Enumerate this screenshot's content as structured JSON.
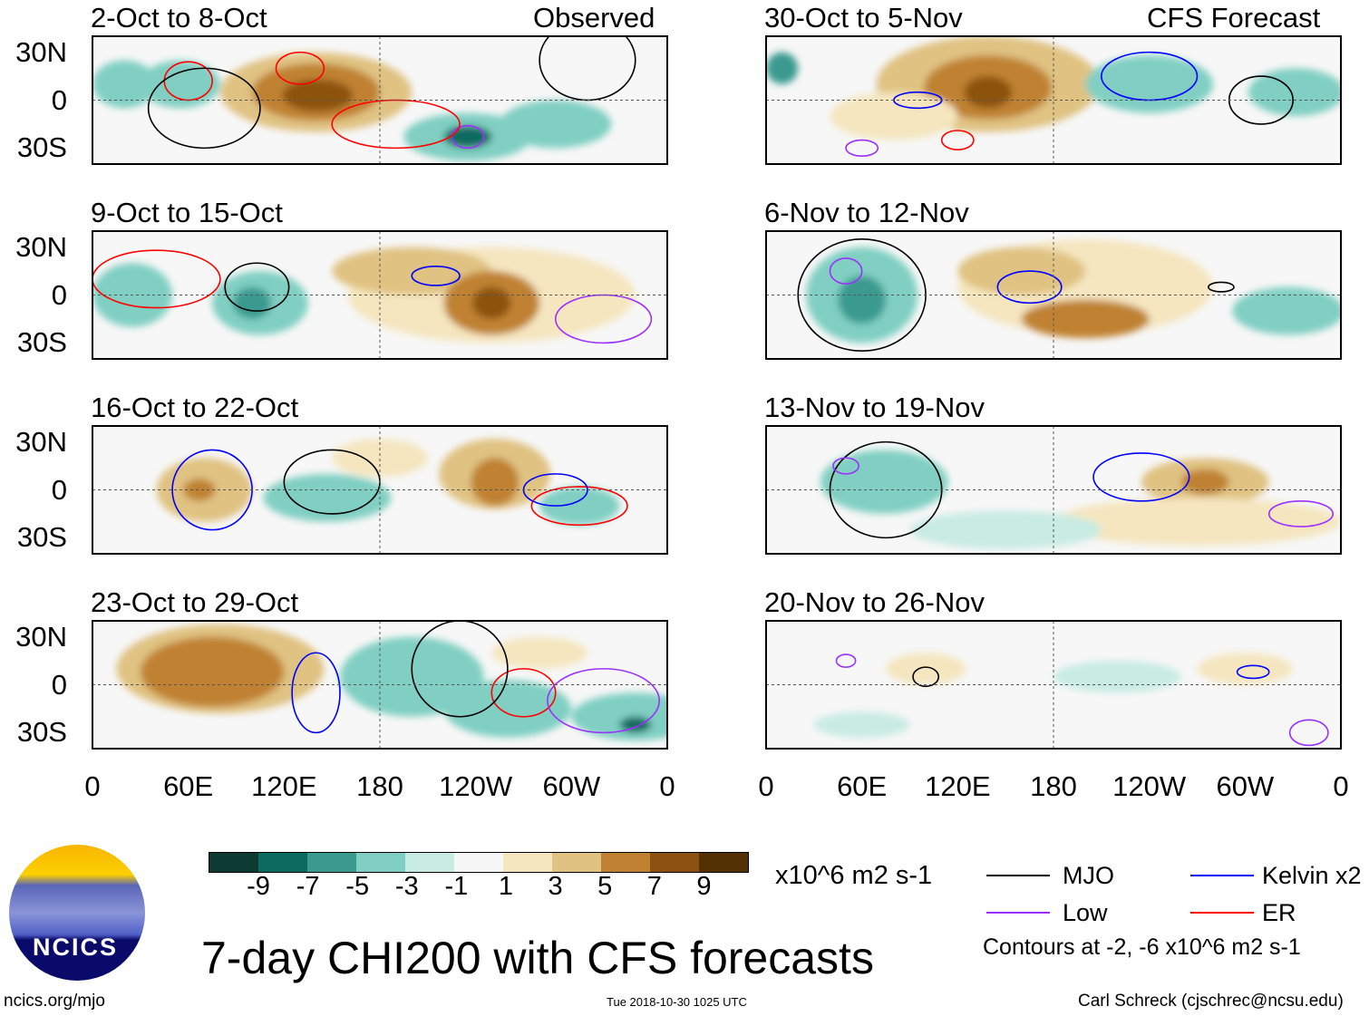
{
  "header": {
    "left_label": "Observed",
    "right_label": "CFS Forecast"
  },
  "panels_left": [
    "2-Oct to 8-Oct",
    "9-Oct to 15-Oct",
    "16-Oct to 22-Oct",
    "23-Oct to 29-Oct"
  ],
  "panels_right": [
    "30-Oct to 5-Nov",
    "6-Nov to 12-Nov",
    "13-Nov to 19-Nov",
    "20-Nov to 26-Nov"
  ],
  "chart_data": {
    "type": "heatmap",
    "title": "7-day CHI200 with CFS forecasts",
    "y_ticks": [
      "30N",
      "0",
      "30S"
    ],
    "x_ticks": [
      "0",
      "60E",
      "120E",
      "180",
      "120W",
      "60W",
      "0"
    ],
    "lat_range": [
      -40,
      40
    ],
    "lon_range": [
      0,
      360
    ],
    "colorbar": {
      "ticks": [
        "-9",
        "-7",
        "-5",
        "-3",
        "-1",
        "1",
        "3",
        "5",
        "7",
        "9"
      ],
      "units": "x10^6 m2 s-1",
      "colors": [
        "#0d3b33",
        "#0b6b60",
        "#3a9a90",
        "#80cfc2",
        "#c8ebe3",
        "#f7f7f7",
        "#f5e6c0",
        "#e0c282",
        "#c08232",
        "#8c5211",
        "#543005"
      ]
    },
    "legend": [
      {
        "label": "MJO",
        "color": "#000000"
      },
      {
        "label": "Kelvin x2",
        "color": "#0000ff"
      },
      {
        "label": "Low",
        "color": "#9b30ff"
      },
      {
        "label": "ER",
        "color": "#ff0000"
      }
    ],
    "contour_note": "Contours at -2, -6 x10^6 m2 s-1"
  },
  "footer": {
    "site": "ncics.org/mjo",
    "timestamp": "Tue 2018-10-30 1025 UTC",
    "author": "Carl Schreck (cjschrec@ncsu.edu)",
    "logo_text": "NCICS"
  }
}
